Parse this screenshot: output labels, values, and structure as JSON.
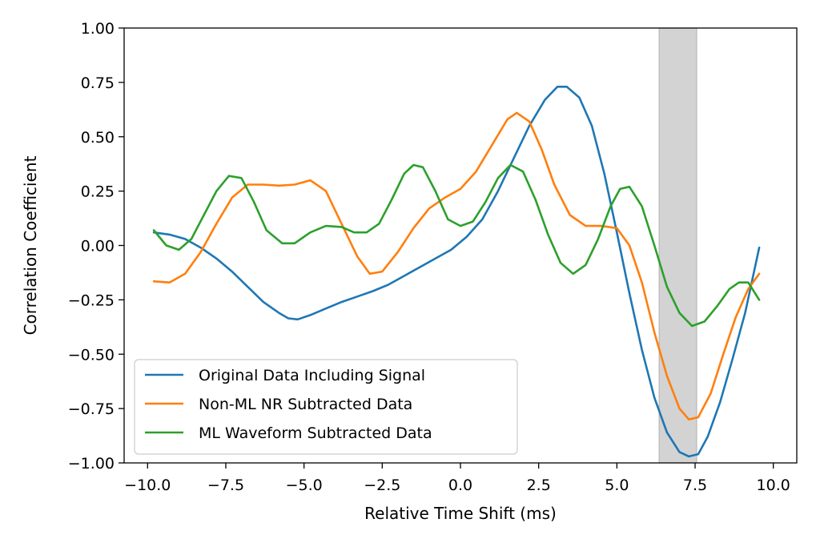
{
  "chart_data": {
    "type": "line",
    "xlabel": "Relative Time Shift (ms)",
    "ylabel": "Correlation Coefficient",
    "xlim": [
      -10.75,
      10.75
    ],
    "ylim": [
      -1.0,
      1.0
    ],
    "x_ticks": [
      -10.0,
      -7.5,
      -5.0,
      -2.5,
      0.0,
      2.5,
      5.0,
      7.5,
      10.0
    ],
    "x_tick_labels": [
      "−10.0",
      "−7.5",
      "−5.0",
      "−2.5",
      "0.0",
      "2.5",
      "5.0",
      "7.5",
      "10.0"
    ],
    "y_ticks": [
      1.0,
      0.75,
      0.5,
      0.25,
      0.0,
      -0.25,
      -0.5,
      -0.75,
      -1.0
    ],
    "y_tick_labels": [
      "1.00",
      "0.75",
      "0.50",
      "0.25",
      "0.00",
      "−0.25",
      "−0.50",
      "−0.75",
      "−1.00"
    ],
    "grid": false,
    "legend_position": "lower-left",
    "shaded_region": {
      "x_start": 6.35,
      "x_end": 7.55,
      "color": "#d3d3d3"
    },
    "series": [
      {
        "name": "Original Data Including Signal",
        "color": "#1f77b4",
        "points": [
          [
            -9.8,
            0.06
          ],
          [
            -9.3,
            0.05
          ],
          [
            -8.8,
            0.03
          ],
          [
            -8.3,
            -0.01
          ],
          [
            -7.8,
            -0.06
          ],
          [
            -7.3,
            -0.12
          ],
          [
            -6.8,
            -0.19
          ],
          [
            -6.3,
            -0.26
          ],
          [
            -5.8,
            -0.31
          ],
          [
            -5.5,
            -0.335
          ],
          [
            -5.2,
            -0.34
          ],
          [
            -4.8,
            -0.32
          ],
          [
            -4.3,
            -0.29
          ],
          [
            -3.8,
            -0.26
          ],
          [
            -3.3,
            -0.235
          ],
          [
            -2.8,
            -0.21
          ],
          [
            -2.3,
            -0.18
          ],
          [
            -1.8,
            -0.14
          ],
          [
            -1.3,
            -0.1
          ],
          [
            -0.8,
            -0.06
          ],
          [
            -0.3,
            -0.02
          ],
          [
            0.2,
            0.04
          ],
          [
            0.7,
            0.12
          ],
          [
            1.2,
            0.25
          ],
          [
            1.7,
            0.4
          ],
          [
            2.2,
            0.55
          ],
          [
            2.7,
            0.67
          ],
          [
            3.1,
            0.73
          ],
          [
            3.4,
            0.73
          ],
          [
            3.8,
            0.68
          ],
          [
            4.2,
            0.55
          ],
          [
            4.6,
            0.33
          ],
          [
            5.0,
            0.06
          ],
          [
            5.4,
            -0.22
          ],
          [
            5.8,
            -0.48
          ],
          [
            6.2,
            -0.7
          ],
          [
            6.6,
            -0.86
          ],
          [
            7.0,
            -0.95
          ],
          [
            7.3,
            -0.97
          ],
          [
            7.6,
            -0.96
          ],
          [
            7.9,
            -0.88
          ],
          [
            8.3,
            -0.72
          ],
          [
            8.7,
            -0.52
          ],
          [
            9.1,
            -0.31
          ],
          [
            9.55,
            -0.01
          ]
        ]
      },
      {
        "name": "Non-ML NR Subtracted Data",
        "color": "#ff7f0e",
        "points": [
          [
            -9.8,
            -0.165
          ],
          [
            -9.3,
            -0.17
          ],
          [
            -8.8,
            -0.13
          ],
          [
            -8.3,
            -0.03
          ],
          [
            -7.8,
            0.1
          ],
          [
            -7.3,
            0.22
          ],
          [
            -6.8,
            0.28
          ],
          [
            -6.3,
            0.28
          ],
          [
            -5.8,
            0.275
          ],
          [
            -5.3,
            0.28
          ],
          [
            -4.8,
            0.3
          ],
          [
            -4.3,
            0.25
          ],
          [
            -3.8,
            0.1
          ],
          [
            -3.3,
            -0.05
          ],
          [
            -2.9,
            -0.13
          ],
          [
            -2.5,
            -0.12
          ],
          [
            -2.0,
            -0.03
          ],
          [
            -1.5,
            0.08
          ],
          [
            -1.0,
            0.17
          ],
          [
            -0.5,
            0.22
          ],
          [
            0.0,
            0.26
          ],
          [
            0.5,
            0.34
          ],
          [
            1.0,
            0.46
          ],
          [
            1.5,
            0.58
          ],
          [
            1.8,
            0.61
          ],
          [
            2.2,
            0.57
          ],
          [
            2.6,
            0.44
          ],
          [
            3.0,
            0.28
          ],
          [
            3.5,
            0.14
          ],
          [
            4.0,
            0.09
          ],
          [
            4.5,
            0.09
          ],
          [
            5.0,
            0.08
          ],
          [
            5.4,
            0.0
          ],
          [
            5.8,
            -0.17
          ],
          [
            6.2,
            -0.4
          ],
          [
            6.6,
            -0.6
          ],
          [
            7.0,
            -0.75
          ],
          [
            7.3,
            -0.8
          ],
          [
            7.6,
            -0.79
          ],
          [
            8.0,
            -0.68
          ],
          [
            8.4,
            -0.5
          ],
          [
            8.8,
            -0.33
          ],
          [
            9.2,
            -0.2
          ],
          [
            9.55,
            -0.13
          ]
        ]
      },
      {
        "name": "ML Waveform Subtracted Data",
        "color": "#2ca02c",
        "points": [
          [
            -9.8,
            0.07
          ],
          [
            -9.4,
            0.0
          ],
          [
            -9.0,
            -0.02
          ],
          [
            -8.6,
            0.03
          ],
          [
            -8.2,
            0.14
          ],
          [
            -7.8,
            0.25
          ],
          [
            -7.4,
            0.32
          ],
          [
            -7.0,
            0.31
          ],
          [
            -6.6,
            0.2
          ],
          [
            -6.2,
            0.07
          ],
          [
            -5.7,
            0.01
          ],
          [
            -5.3,
            0.01
          ],
          [
            -4.8,
            0.06
          ],
          [
            -4.3,
            0.09
          ],
          [
            -3.8,
            0.085
          ],
          [
            -3.4,
            0.06
          ],
          [
            -3.0,
            0.06
          ],
          [
            -2.6,
            0.1
          ],
          [
            -2.2,
            0.21
          ],
          [
            -1.8,
            0.33
          ],
          [
            -1.5,
            0.37
          ],
          [
            -1.2,
            0.36
          ],
          [
            -0.8,
            0.25
          ],
          [
            -0.4,
            0.12
          ],
          [
            0.0,
            0.09
          ],
          [
            0.4,
            0.11
          ],
          [
            0.8,
            0.2
          ],
          [
            1.2,
            0.31
          ],
          [
            1.6,
            0.37
          ],
          [
            2.0,
            0.34
          ],
          [
            2.4,
            0.21
          ],
          [
            2.8,
            0.05
          ],
          [
            3.2,
            -0.08
          ],
          [
            3.6,
            -0.13
          ],
          [
            4.0,
            -0.09
          ],
          [
            4.4,
            0.03
          ],
          [
            4.8,
            0.18
          ],
          [
            5.1,
            0.26
          ],
          [
            5.4,
            0.27
          ],
          [
            5.8,
            0.18
          ],
          [
            6.2,
            0.0
          ],
          [
            6.6,
            -0.19
          ],
          [
            7.0,
            -0.31
          ],
          [
            7.4,
            -0.37
          ],
          [
            7.8,
            -0.35
          ],
          [
            8.2,
            -0.28
          ],
          [
            8.6,
            -0.2
          ],
          [
            8.9,
            -0.17
          ],
          [
            9.2,
            -0.17
          ],
          [
            9.55,
            -0.25
          ]
        ]
      }
    ]
  }
}
